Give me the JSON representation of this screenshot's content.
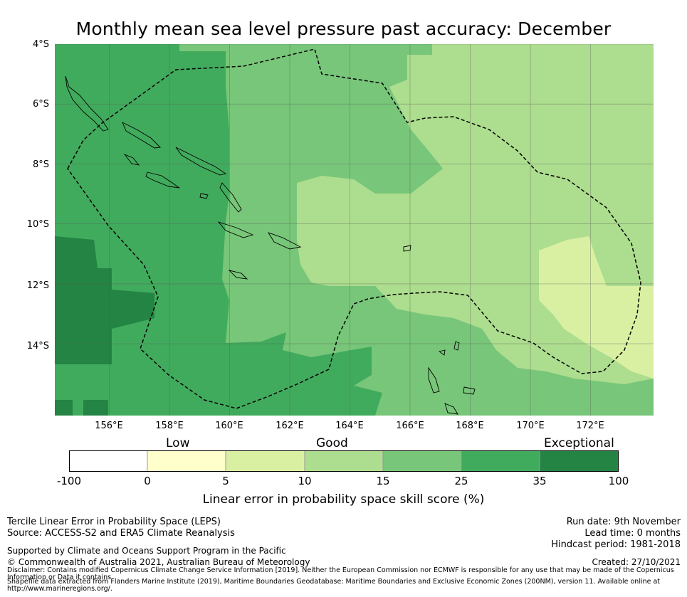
{
  "title": "Monthly mean sea level pressure past accuracy: December",
  "map": {
    "lat_labels": [
      "4°S",
      "6°S",
      "8°S",
      "10°S",
      "12°S",
      "14°S"
    ],
    "lon_labels": [
      "156°E",
      "158°E",
      "160°E",
      "162°E",
      "164°E",
      "166°E",
      "168°E",
      "170°E",
      "172°E"
    ],
    "lat_range": [
      -4,
      -16.25
    ],
    "lon_range": [
      154.05,
      173.95
    ],
    "colors": {
      "c0": "#ffffff",
      "c1": "#ffffcc",
      "c2": "#d9f0a3",
      "c3": "#addd8e",
      "c4": "#78c679",
      "c5": "#41ab5d",
      "c6": "#238443",
      "grid": "#555555",
      "land_outline": "#000000",
      "eez_outline": "#000000"
    }
  },
  "colorbar": {
    "categories": [
      "Low",
      "Good",
      "Exceptional"
    ],
    "ticks": [
      "-100",
      "0",
      "5",
      "10",
      "15",
      "25",
      "35",
      "100"
    ],
    "label": "Linear error in probability space skill score (%)"
  },
  "footer": {
    "left_line1": "Tercile Linear Error in Probability Space (LEPS)",
    "left_line2": "Source: ACCESS-S2 and ERA5 Climate Reanalysis",
    "support": "Supported by Climate and Oceans Support Program in the Pacific",
    "copyright": "© Commonwealth of Australia 2021, Australian Bureau of Meteorology",
    "disclaimer": "Disclaimer: Contains modified Copernicus Climate Change Service Information [2019]. Neither the European Commission nor ECMWF is responsible for any use that may be made of the Copernicus Information or Data it contains.",
    "shapefile": "Shapefile data extracted from Flanders Marine Institute (2019), Maritime Boundaries Geodatabase: Maritime Boundaries and Exclusive Economic Zones (200NM), version 11. Available online at http://www.marineregions.org/.",
    "run_date": "Run date: 9th November",
    "lead_time": "Lead time: 0 months",
    "hindcast": "Hindcast period: 1981-2018",
    "created": "Created: 27/10/2021"
  }
}
